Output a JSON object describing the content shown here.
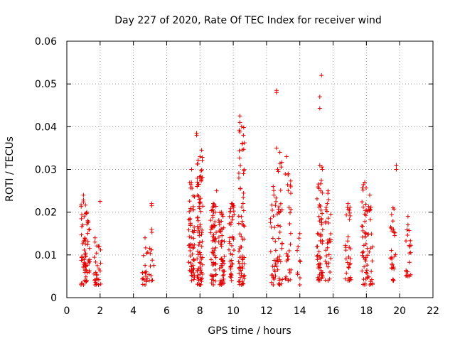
{
  "chart_data": {
    "type": "scatter",
    "title": "Day 227 of 2020, Rate Of TEC Index for receiver wind",
    "xlabel": "GPS time / hours",
    "ylabel": "ROTI / TECUs",
    "xlim": [
      0,
      22
    ],
    "ylim": [
      0,
      0.06
    ],
    "x_ticks": [
      0,
      2,
      4,
      6,
      8,
      10,
      12,
      14,
      16,
      18,
      20,
      22
    ],
    "y_ticks": [
      0,
      0.01,
      0.02,
      0.03,
      0.04,
      0.05,
      0.06
    ],
    "x_tick_labels": [
      "0",
      "2",
      "4",
      "6",
      "8",
      "10",
      "12",
      "14",
      "16",
      "18",
      "20",
      "22"
    ],
    "y_tick_labels": [
      "0",
      "0.01",
      "0.02",
      "0.03",
      "0.04",
      "0.05",
      "0.06"
    ],
    "grid": true,
    "marker": "+",
    "marker_color": "#e00000",
    "series": [
      {
        "name": "ROTI",
        "clusters": [
          {
            "x": 1.0,
            "ymin": 0.003,
            "ymax": 0.024,
            "n": 40
          },
          {
            "x": 1.2,
            "ymin": 0.004,
            "ymax": 0.02,
            "n": 30
          },
          {
            "x": 1.7,
            "ymin": 0.003,
            "ymax": 0.014,
            "n": 14
          },
          {
            "x": 1.9,
            "ymin": 0.003,
            "ymax": 0.012,
            "n": 10
          },
          {
            "x": 4.7,
            "ymin": 0.003,
            "ymax": 0.014,
            "n": 18
          },
          {
            "x": 5.1,
            "ymin": 0.004,
            "ymax": 0.016,
            "n": 12
          },
          {
            "x": 7.5,
            "ymin": 0.004,
            "ymax": 0.03,
            "n": 60
          },
          {
            "x": 8.0,
            "ymin": 0.003,
            "ymax": 0.033,
            "n": 80
          },
          {
            "x": 8.8,
            "ymin": 0.003,
            "ymax": 0.022,
            "n": 60
          },
          {
            "x": 9.3,
            "ymin": 0.003,
            "ymax": 0.02,
            "n": 50
          },
          {
            "x": 9.9,
            "ymin": 0.004,
            "ymax": 0.022,
            "n": 40
          },
          {
            "x": 10.5,
            "ymin": 0.003,
            "ymax": 0.04,
            "n": 70
          },
          {
            "x": 12.4,
            "ymin": 0.003,
            "ymax": 0.026,
            "n": 30
          },
          {
            "x": 12.8,
            "ymin": 0.003,
            "ymax": 0.034,
            "n": 35
          },
          {
            "x": 13.3,
            "ymin": 0.004,
            "ymax": 0.029,
            "n": 30
          },
          {
            "x": 14.0,
            "ymin": 0.003,
            "ymax": 0.015,
            "n": 8
          },
          {
            "x": 15.2,
            "ymin": 0.004,
            "ymax": 0.031,
            "n": 60
          },
          {
            "x": 15.7,
            "ymin": 0.004,
            "ymax": 0.025,
            "n": 30
          },
          {
            "x": 16.9,
            "ymin": 0.004,
            "ymax": 0.022,
            "n": 30
          },
          {
            "x": 17.9,
            "ymin": 0.003,
            "ymax": 0.027,
            "n": 40
          },
          {
            "x": 18.2,
            "ymin": 0.003,
            "ymax": 0.024,
            "n": 25
          },
          {
            "x": 19.6,
            "ymin": 0.004,
            "ymax": 0.021,
            "n": 25
          },
          {
            "x": 20.5,
            "ymin": 0.005,
            "ymax": 0.019,
            "n": 20
          }
        ],
        "outliers": [
          {
            "x": 2.0,
            "y": 0.0225
          },
          {
            "x": 5.1,
            "y": 0.022
          },
          {
            "x": 5.1,
            "y": 0.0215
          },
          {
            "x": 7.8,
            "y": 0.0385
          },
          {
            "x": 7.8,
            "y": 0.038
          },
          {
            "x": 8.1,
            "y": 0.0345
          },
          {
            "x": 9.0,
            "y": 0.025
          },
          {
            "x": 10.4,
            "y": 0.0425
          },
          {
            "x": 10.4,
            "y": 0.041
          },
          {
            "x": 12.6,
            "y": 0.0485
          },
          {
            "x": 12.6,
            "y": 0.048
          },
          {
            "x": 12.6,
            "y": 0.035
          },
          {
            "x": 13.2,
            "y": 0.033
          },
          {
            "x": 15.3,
            "y": 0.052
          },
          {
            "x": 15.2,
            "y": 0.047
          },
          {
            "x": 15.2,
            "y": 0.0443
          },
          {
            "x": 19.8,
            "y": 0.031
          },
          {
            "x": 19.8,
            "y": 0.03
          }
        ]
      }
    ]
  }
}
